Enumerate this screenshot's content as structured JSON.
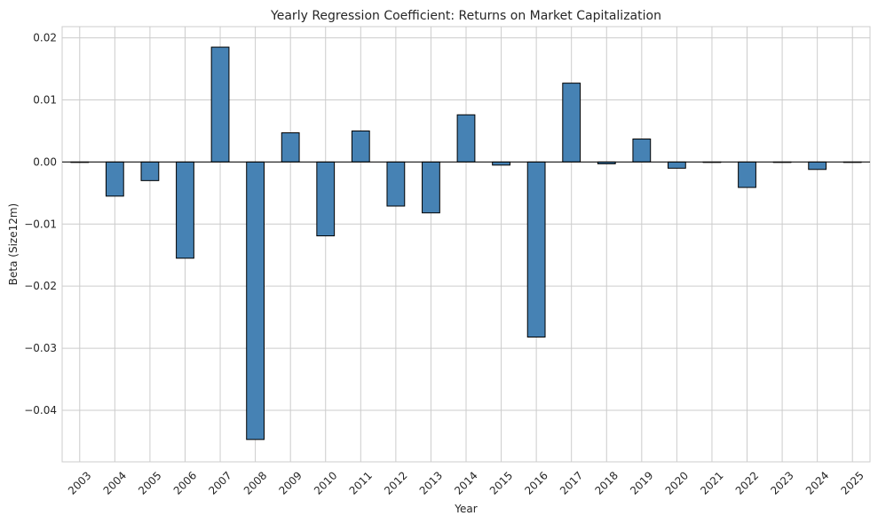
{
  "chart_data": {
    "type": "bar",
    "title": "Yearly Regression Coefficient: Returns on Market Capitalization",
    "xlabel": "Year",
    "ylabel": "Beta (Size12m)",
    "categories": [
      "2003",
      "2004",
      "2005",
      "2006",
      "2007",
      "2008",
      "2009",
      "2010",
      "2011",
      "2012",
      "2013",
      "2014",
      "2015",
      "2016",
      "2017",
      "2018",
      "2019",
      "2020",
      "2021",
      "2022",
      "2023",
      "2024",
      "2025"
    ],
    "values": [
      0.0,
      -0.0055,
      -0.003,
      -0.0155,
      0.0185,
      -0.0447,
      0.0047,
      -0.0119,
      0.005,
      -0.0071,
      -0.0082,
      0.0076,
      -0.0005,
      -0.0282,
      0.0127,
      -0.0003,
      0.0037,
      -0.001,
      0.0,
      -0.0041,
      0.0,
      -0.0012,
      0.0
    ],
    "ylim": [
      -0.0483,
      0.0218
    ],
    "yticks": [
      -0.04,
      -0.03,
      -0.02,
      -0.01,
      0.0,
      0.01,
      0.02
    ],
    "ytick_labels": [
      "−0.04",
      "−0.03",
      "−0.02",
      "−0.01",
      "0.00",
      "0.01",
      "0.02"
    ],
    "bar_color": "#4682b4",
    "edge_color": "#000000",
    "grid": true,
    "zero_line": true
  }
}
